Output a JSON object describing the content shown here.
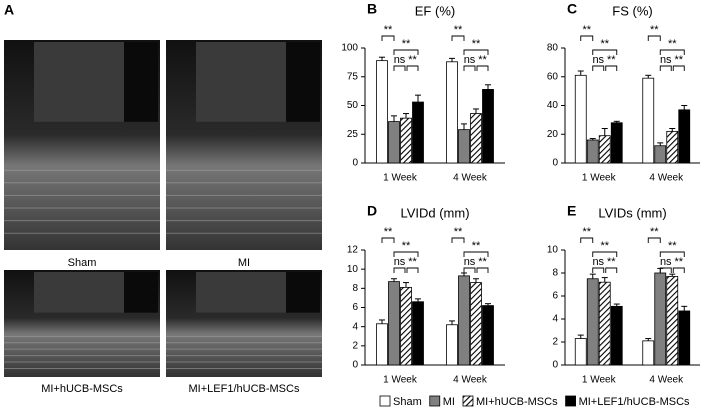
{
  "panel_a": {
    "label": "A",
    "images": [
      {
        "caption": "Sham"
      },
      {
        "caption": "MI"
      },
      {
        "caption": "MI+hUCB-MSCs"
      },
      {
        "caption": "MI+LEF1/hUCB-MSCs"
      }
    ]
  },
  "legend": [
    {
      "name": "Sham",
      "color": "#ffffff"
    },
    {
      "name": "MI",
      "color": "#808080"
    },
    {
      "name": "MI+hUCB-MSCs",
      "color": "#ffffff",
      "hatch": true
    },
    {
      "name": "MI+LEF1/hUCB-MSCs",
      "color": "#000000"
    }
  ],
  "chart_data": [
    {
      "type": "bar",
      "panel": "B",
      "title": "EF (%)",
      "categories": [
        "1 Week",
        "4 Week"
      ],
      "series": [
        {
          "values": [
            89,
            88
          ],
          "errors": [
            3,
            3
          ]
        },
        {
          "values": [
            36,
            29
          ],
          "errors": [
            5,
            5
          ]
        },
        {
          "values": [
            39,
            43
          ],
          "errors": [
            4,
            4
          ]
        },
        {
          "values": [
            53,
            64
          ],
          "errors": [
            6,
            4
          ]
        }
      ],
      "ylim": [
        0,
        100
      ],
      "yticks": [
        0,
        25,
        50,
        75,
        100
      ],
      "annotations": [
        {
          "text": "**",
          "pair": [
            0,
            1
          ]
        },
        {
          "text": "**",
          "pair": [
            1,
            3
          ]
        },
        {
          "text": "ns",
          "pair": [
            1,
            2
          ]
        },
        {
          "text": "**",
          "pair": [
            2,
            3
          ]
        }
      ]
    },
    {
      "type": "bar",
      "panel": "C",
      "title": "FS (%)",
      "categories": [
        "1 Week",
        "4 Week"
      ],
      "series": [
        {
          "values": [
            61,
            59
          ],
          "errors": [
            3,
            2
          ]
        },
        {
          "values": [
            16,
            12
          ],
          "errors": [
            1,
            2
          ]
        },
        {
          "values": [
            19,
            22
          ],
          "errors": [
            5,
            2
          ]
        },
        {
          "values": [
            28,
            37
          ],
          "errors": [
            1,
            3
          ]
        }
      ],
      "ylim": [
        0,
        80
      ],
      "yticks": [
        0,
        20,
        40,
        60,
        80
      ],
      "annotations": [
        {
          "text": "**",
          "pair": [
            0,
            1
          ]
        },
        {
          "text": "**",
          "pair": [
            1,
            3
          ]
        },
        {
          "text": "ns",
          "pair": [
            1,
            2
          ]
        },
        {
          "text": "**",
          "pair": [
            2,
            3
          ]
        }
      ]
    },
    {
      "type": "bar",
      "panel": "D",
      "title": "LVIDd (mm)",
      "categories": [
        "1 Week",
        "4 Week"
      ],
      "series": [
        {
          "values": [
            4.3,
            4.2
          ],
          "errors": [
            0.4,
            0.4
          ]
        },
        {
          "values": [
            8.7,
            9.3
          ],
          "errors": [
            0.3,
            0.3
          ]
        },
        {
          "values": [
            8.1,
            8.6
          ],
          "errors": [
            0.5,
            0.4
          ]
        },
        {
          "values": [
            6.6,
            6.2
          ],
          "errors": [
            0.3,
            0.2
          ]
        }
      ],
      "ylim": [
        0,
        12
      ],
      "yticks": [
        0,
        2,
        4,
        6,
        8,
        10,
        12
      ],
      "annotations": [
        {
          "text": "**",
          "pair": [
            0,
            1
          ]
        },
        {
          "text": "**",
          "pair": [
            1,
            3
          ]
        },
        {
          "text": "ns",
          "pair": [
            1,
            2
          ]
        },
        {
          "text": "**",
          "pair": [
            2,
            3
          ]
        }
      ]
    },
    {
      "type": "bar",
      "panel": "E",
      "title": "LVIDs (mm)",
      "categories": [
        "1 Week",
        "4 Week"
      ],
      "series": [
        {
          "values": [
            2.3,
            2.1
          ],
          "errors": [
            0.3,
            0.2
          ]
        },
        {
          "values": [
            7.5,
            8.0
          ],
          "errors": [
            0.4,
            0.4
          ]
        },
        {
          "values": [
            7.2,
            7.7
          ],
          "errors": [
            0.4,
            0.2
          ]
        },
        {
          "values": [
            5.1,
            4.7
          ],
          "errors": [
            0.2,
            0.4
          ]
        }
      ],
      "ylim": [
        0,
        10
      ],
      "yticks": [
        0,
        2,
        4,
        6,
        8,
        10
      ],
      "annotations": [
        {
          "text": "**",
          "pair": [
            0,
            1
          ]
        },
        {
          "text": "**",
          "pair": [
            1,
            3
          ]
        },
        {
          "text": "ns",
          "pair": [
            1,
            2
          ]
        },
        {
          "text": "**",
          "pair": [
            2,
            3
          ]
        }
      ]
    }
  ]
}
